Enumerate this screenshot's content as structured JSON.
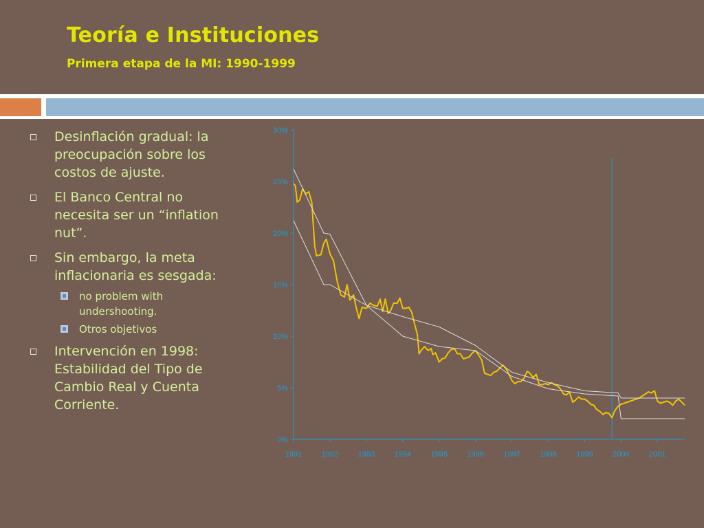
{
  "slide": {
    "title": "Teoría e Instituciones",
    "subtitle": "Primera etapa de la MI: 1990-1999"
  },
  "bullets": [
    {
      "level": 1,
      "text": "Desinflación gradual: la preocupación sobre los costos de ajuste."
    },
    {
      "level": 1,
      "text": "El Banco Central no necesita ser un “inflation nut”."
    },
    {
      "level": 1,
      "text": "Sin embargo, la meta inflacionaria es sesgada:"
    },
    {
      "level": 2,
      "text": "no problem with undershooting."
    },
    {
      "level": 2,
      "text": "Otros objetivos"
    },
    {
      "level": 1,
      "text": "Intervención en 1998: Estabilidad del Tipo de Cambio Real y Cuenta Corriente."
    }
  ],
  "colors": {
    "background": "#745d53",
    "title": "#e3e600",
    "bullet_text": "#d4f09a",
    "axis": "#1a9fd8",
    "inflation": "#f2c200",
    "band": "#dcdcdc",
    "accent_orange": "#dd8047",
    "accent_blue": "#94b6d2"
  },
  "chart_data": {
    "type": "line",
    "title": "",
    "xlabel": "",
    "ylabel": "",
    "xlim": [
      1991,
      2001.75
    ],
    "ylim": [
      0,
      30
    ],
    "x_ticks": [
      "1991",
      "1992",
      "1993",
      "1994",
      "1995",
      "1996",
      "1997",
      "1998",
      "1999",
      "2000",
      "2001"
    ],
    "y_ticks": [
      "0%",
      "5%",
      "10%",
      "15%",
      "20%",
      "25%",
      "30%"
    ],
    "vertical_marker_x": 1999.75,
    "grid": false,
    "legend": "none",
    "series": [
      {
        "role": "inflation",
        "points": [
          [
            1991.0,
            24.8
          ],
          [
            1991.05,
            24.6
          ],
          [
            1991.1,
            23.0
          ],
          [
            1991.17,
            23.2
          ],
          [
            1991.25,
            24.3
          ],
          [
            1991.33,
            23.8
          ],
          [
            1991.42,
            24.0
          ],
          [
            1991.5,
            23.0
          ],
          [
            1991.58,
            18.8
          ],
          [
            1991.63,
            17.8
          ],
          [
            1991.75,
            17.9
          ],
          [
            1991.83,
            19.0
          ],
          [
            1991.9,
            19.4
          ],
          [
            1992.0,
            18.0
          ],
          [
            1992.1,
            17.3
          ],
          [
            1992.2,
            15.3
          ],
          [
            1992.3,
            14.0
          ],
          [
            1992.4,
            13.8
          ],
          [
            1992.47,
            15.0
          ],
          [
            1992.55,
            13.5
          ],
          [
            1992.65,
            14.0
          ],
          [
            1992.72,
            12.8
          ],
          [
            1992.8,
            11.7
          ],
          [
            1992.88,
            12.8
          ],
          [
            1993.0,
            12.7
          ],
          [
            1993.1,
            13.2
          ],
          [
            1993.2,
            13.0
          ],
          [
            1993.3,
            12.9
          ],
          [
            1993.38,
            13.6
          ],
          [
            1993.45,
            12.4
          ],
          [
            1993.52,
            13.6
          ],
          [
            1993.6,
            12.2
          ],
          [
            1993.67,
            12.5
          ],
          [
            1993.75,
            13.2
          ],
          [
            1993.85,
            13.2
          ],
          [
            1993.92,
            13.7
          ],
          [
            1994.0,
            12.7
          ],
          [
            1994.08,
            12.7
          ],
          [
            1994.17,
            12.8
          ],
          [
            1994.25,
            12.3
          ],
          [
            1994.33,
            11.1
          ],
          [
            1994.4,
            10.2
          ],
          [
            1994.45,
            8.3
          ],
          [
            1994.5,
            8.6
          ],
          [
            1994.6,
            9.0
          ],
          [
            1994.7,
            8.6
          ],
          [
            1994.78,
            8.8
          ],
          [
            1994.83,
            8.2
          ],
          [
            1994.9,
            8.4
          ],
          [
            1995.0,
            7.5
          ],
          [
            1995.08,
            7.8
          ],
          [
            1995.17,
            7.9
          ],
          [
            1995.25,
            8.4
          ],
          [
            1995.33,
            8.7
          ],
          [
            1995.42,
            8.8
          ],
          [
            1995.5,
            8.3
          ],
          [
            1995.58,
            8.3
          ],
          [
            1995.67,
            7.8
          ],
          [
            1995.75,
            7.9
          ],
          [
            1995.83,
            8.0
          ],
          [
            1995.92,
            8.4
          ],
          [
            1996.0,
            8.6
          ],
          [
            1996.08,
            8.2
          ],
          [
            1996.17,
            7.7
          ],
          [
            1996.25,
            6.4
          ],
          [
            1996.33,
            6.3
          ],
          [
            1996.42,
            6.2
          ],
          [
            1996.5,
            6.5
          ],
          [
            1996.58,
            6.6
          ],
          [
            1996.67,
            6.9
          ],
          [
            1996.75,
            7.2
          ],
          [
            1996.83,
            6.9
          ],
          [
            1996.92,
            6.3
          ],
          [
            1997.0,
            5.7
          ],
          [
            1997.08,
            5.4
          ],
          [
            1997.17,
            5.6
          ],
          [
            1997.25,
            5.6
          ],
          [
            1997.33,
            5.9
          ],
          [
            1997.42,
            6.6
          ],
          [
            1997.5,
            6.4
          ],
          [
            1997.58,
            6.0
          ],
          [
            1997.67,
            6.3
          ],
          [
            1997.75,
            5.3
          ],
          [
            1997.83,
            5.3
          ],
          [
            1997.92,
            5.4
          ],
          [
            1998.0,
            5.3
          ],
          [
            1998.08,
            5.5
          ],
          [
            1998.17,
            5.3
          ],
          [
            1998.25,
            5.2
          ],
          [
            1998.33,
            4.9
          ],
          [
            1998.42,
            4.4
          ],
          [
            1998.5,
            4.3
          ],
          [
            1998.58,
            4.6
          ],
          [
            1998.67,
            3.6
          ],
          [
            1998.75,
            3.8
          ],
          [
            1998.83,
            4.1
          ],
          [
            1998.92,
            3.9
          ],
          [
            1999.0,
            3.9
          ],
          [
            1999.08,
            3.7
          ],
          [
            1999.17,
            3.4
          ],
          [
            1999.25,
            3.3
          ],
          [
            1999.33,
            2.9
          ],
          [
            1999.42,
            2.7
          ],
          [
            1999.5,
            2.4
          ],
          [
            1999.58,
            2.6
          ],
          [
            1999.67,
            2.5
          ],
          [
            1999.75,
            2.1
          ],
          [
            1999.83,
            2.8
          ],
          [
            1999.92,
            3.2
          ],
          [
            2000.0,
            3.4
          ],
          [
            2000.17,
            3.6
          ],
          [
            2000.33,
            3.8
          ],
          [
            2000.5,
            4.0
          ],
          [
            2000.67,
            4.4
          ],
          [
            2000.75,
            4.6
          ],
          [
            2000.83,
            4.5
          ],
          [
            2000.92,
            4.7
          ],
          [
            2001.0,
            3.7
          ],
          [
            2001.08,
            3.5
          ],
          [
            2001.17,
            3.6
          ],
          [
            2001.25,
            3.7
          ],
          [
            2001.33,
            3.6
          ],
          [
            2001.42,
            3.3
          ],
          [
            2001.5,
            3.7
          ],
          [
            2001.58,
            3.9
          ],
          [
            2001.67,
            3.6
          ],
          [
            2001.75,
            3.3
          ]
        ]
      },
      {
        "role": "target-band-upper",
        "points": [
          [
            1991.0,
            26.2
          ],
          [
            1991.83,
            20.0
          ],
          [
            1992.0,
            19.9
          ],
          [
            1993.0,
            13.0
          ],
          [
            1994.0,
            11.9
          ],
          [
            1995.0,
            10.9
          ],
          [
            1996.0,
            9.1
          ],
          [
            1997.0,
            6.5
          ],
          [
            1998.0,
            5.5
          ],
          [
            1999.0,
            4.7
          ],
          [
            1999.92,
            4.5
          ],
          [
            2000.0,
            4.0
          ],
          [
            2001.75,
            4.0
          ]
        ]
      },
      {
        "role": "target-band-lower",
        "points": [
          [
            1991.0,
            21.2
          ],
          [
            1991.83,
            15.0
          ],
          [
            1992.0,
            15.0
          ],
          [
            1993.0,
            13.0
          ],
          [
            1994.0,
            10.0
          ],
          [
            1995.0,
            9.0
          ],
          [
            1996.0,
            8.6
          ],
          [
            1997.0,
            6.1
          ],
          [
            1998.0,
            4.9
          ],
          [
            1999.0,
            4.4
          ],
          [
            1999.92,
            4.2
          ],
          [
            2000.0,
            2.0
          ],
          [
            2001.75,
            2.0
          ]
        ]
      }
    ]
  }
}
